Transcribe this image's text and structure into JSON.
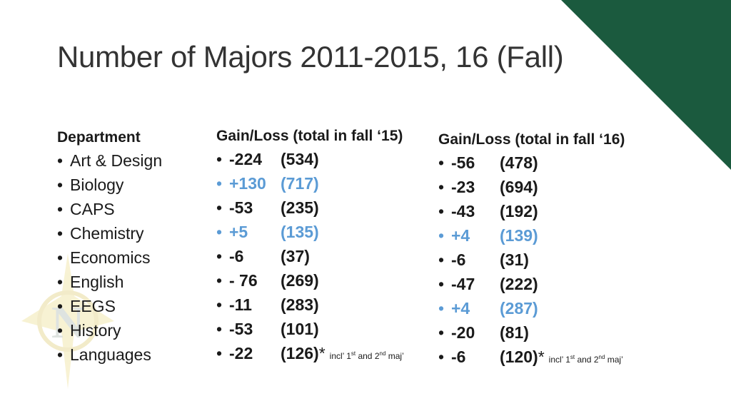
{
  "slide": {
    "title": "Number of Majors 2011-2015, 16 (Fall)",
    "accent_color": "#1b5a3e",
    "highlight_color": "#5b9bd5"
  },
  "departments": {
    "header": "Department",
    "items": [
      "Art & Design",
      "Biology",
      "CAPS",
      "Chemistry",
      "Economics",
      "English",
      "EEGS",
      "History",
      "Languages"
    ]
  },
  "fall15": {
    "header": "Gain/Loss  (total in fall ‘15)",
    "rows": [
      {
        "gain": "-224",
        "total": "(534)",
        "positive": false
      },
      {
        "gain": "+130",
        "total": "(717)",
        "positive": true
      },
      {
        "gain": "-53",
        "total": "(235)",
        "positive": false
      },
      {
        "gain": "+5",
        "total": "(135)",
        "positive": true
      },
      {
        "gain": "-6",
        "total": "(37)",
        "positive": false
      },
      {
        "gain": "- 76",
        "total": "(269)",
        "positive": false
      },
      {
        "gain": "-11",
        "total": "(283)",
        "positive": false
      },
      {
        "gain": "-53",
        "total": "(101)",
        "positive": false
      },
      {
        "gain": "-22",
        "total": "(126)",
        "positive": false
      }
    ],
    "star": "*",
    "note": "incl’ 1st and 2nd  maj’"
  },
  "fall16": {
    "header": "Gain/Loss  (total in fall ‘16)",
    "rows": [
      {
        "gain": "-56",
        "total": "(478)",
        "positive": false
      },
      {
        "gain": "-23",
        "total": "(694)",
        "positive": false
      },
      {
        "gain": "-43",
        "total": "(192)",
        "positive": false
      },
      {
        "gain": "+4",
        "total": "(139)",
        "positive": true
      },
      {
        "gain": "-6",
        "total": "(31)",
        "positive": false
      },
      {
        "gain": "-47",
        "total": "(222)",
        "positive": false
      },
      {
        "gain": "+4",
        "total": "(287)",
        "positive": true
      },
      {
        "gain": "-20",
        "total": "(81)",
        "positive": false
      },
      {
        "gain": "-6",
        "total": "(120)",
        "positive": false
      }
    ],
    "star": "*",
    "note": "incl’ 1st and 2nd  maj’"
  }
}
